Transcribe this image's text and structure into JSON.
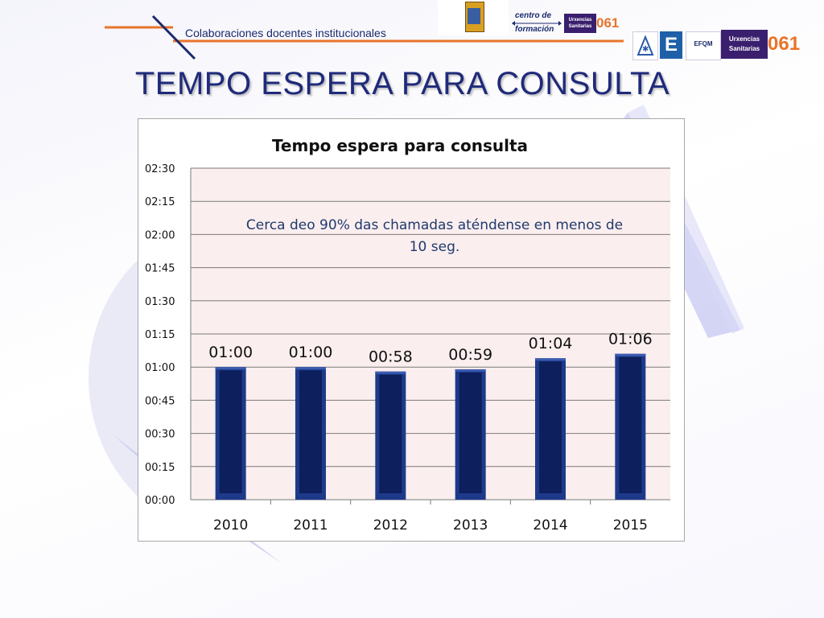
{
  "header": {
    "subtitle": "Colaboraciones docentes institucionales",
    "centro_line1": "centro de",
    "centro_line2": "formación",
    "urx_line1": "Urxencias",
    "urx_line2": "Sanitarias",
    "brand_061": "061",
    "efqm": "EFQM"
  },
  "slide": {
    "title": "TEMPO ESPERA PARA CONSULTA"
  },
  "colors": {
    "bar": "#0d1f5c",
    "bar_edge": "#1d3a8a",
    "plot_bg": "#fbeeee",
    "title": "#1f2a7a",
    "accent_orange": "#e8742a"
  },
  "chart_data": {
    "type": "bar",
    "title": "Tempo espera para consulta",
    "categories": [
      "2010",
      "2011",
      "2012",
      "2013",
      "2014",
      "2015"
    ],
    "values": [
      60,
      60,
      58,
      59,
      64,
      66
    ],
    "data_labels": [
      "01:00",
      "01:00",
      "00:58",
      "00:59",
      "01:04",
      "01:06"
    ],
    "y_ticks": [
      "00:00",
      "00:15",
      "00:30",
      "00:45",
      "01:00",
      "01:15",
      "01:30",
      "01:45",
      "02:00",
      "02:15",
      "02:30"
    ],
    "ylim": [
      0,
      150
    ],
    "y_unit": "seconds",
    "xlabel": "",
    "ylabel": "",
    "grid": true,
    "annotation": [
      "Cerca deo 90% das chamadas aténdense en menos de",
      "10 seg."
    ]
  }
}
